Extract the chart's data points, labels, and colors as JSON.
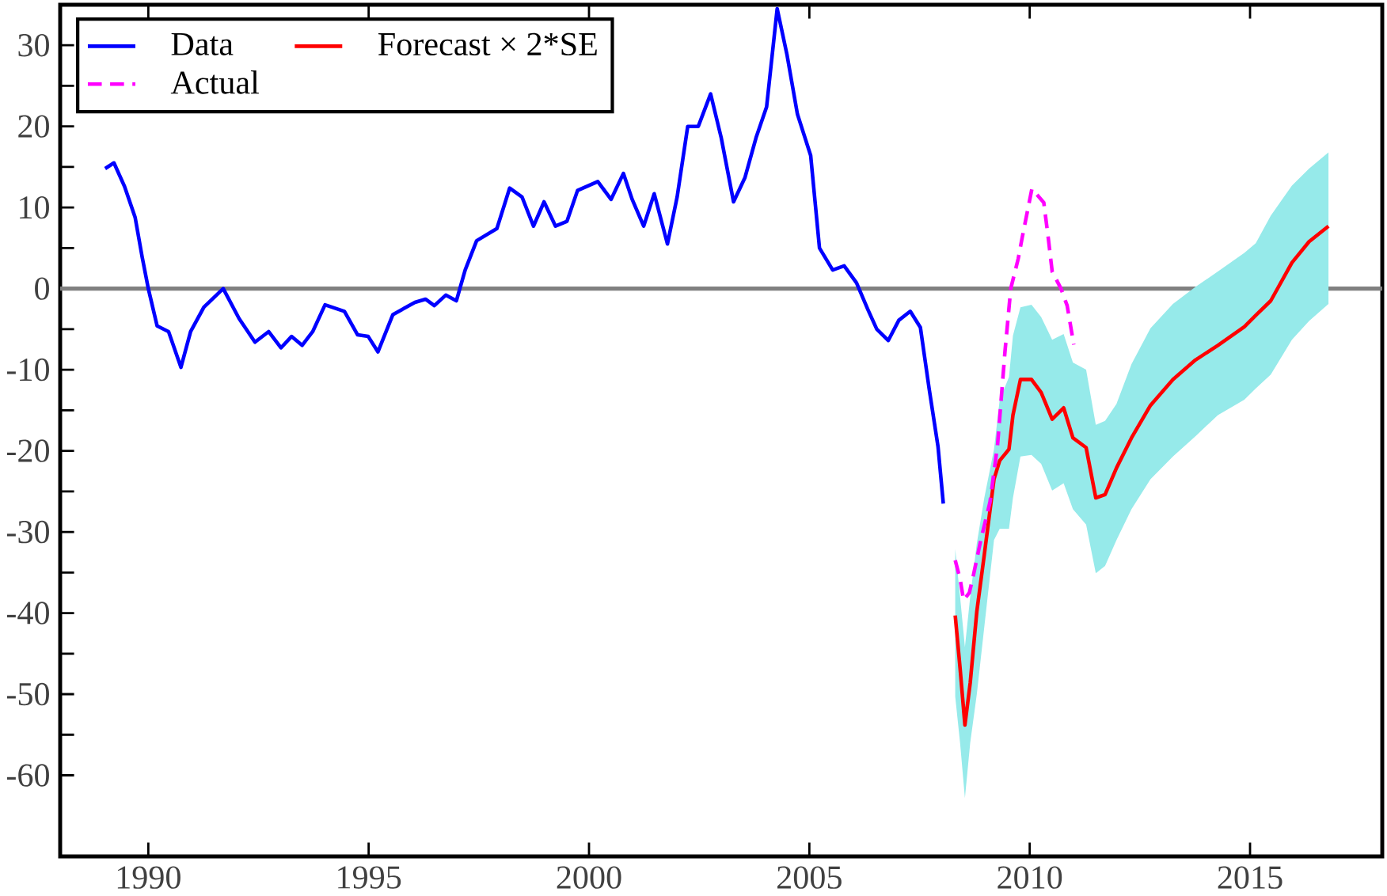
{
  "chart_data": {
    "type": "line",
    "xlim": [
      1988,
      2018
    ],
    "xticks": [
      1990,
      1995,
      2000,
      2005,
      2010,
      2015
    ],
    "ylim": [
      -70,
      35
    ],
    "yticks": [
      -60,
      -50,
      -40,
      -30,
      -20,
      -10,
      0,
      10,
      20,
      30
    ],
    "grid": false,
    "legend": "top left",
    "marker": "none",
    "ref_lines": [
      {
        "axis": "y",
        "value": 0,
        "color": "#808080"
      }
    ],
    "series": [
      {
        "name": "Data",
        "color": "#0000ff",
        "line_style": "solid",
        "x": [
          1989.02,
          1989.22,
          1989.46,
          1989.7,
          1989.86,
          1990.0,
          1990.2,
          1990.46,
          1990.74,
          1990.96,
          1991.26,
          1991.7,
          1992.06,
          1992.42,
          1992.73,
          1993.01,
          1993.25,
          1993.49,
          1993.73,
          1994.01,
          1994.45,
          1994.75,
          1994.99,
          1995.21,
          1995.55,
          1996.05,
          1996.29,
          1996.49,
          1996.75,
          1996.99,
          1997.19,
          1997.45,
          1997.91,
          1998.2,
          1998.48,
          1998.74,
          1998.98,
          1999.24,
          1999.5,
          1999.74,
          2000.2,
          2000.5,
          2000.78,
          2000.98,
          2001.24,
          2001.48,
          2001.78,
          2002.0,
          2002.24,
          2002.48,
          2002.76,
          2003.0,
          2003.28,
          2003.54,
          2003.79,
          2004.03,
          2004.27,
          2004.49,
          2004.73,
          2005.03,
          2005.23,
          2005.53,
          2005.79,
          2006.07,
          2006.33,
          2006.53,
          2006.79,
          2007.03,
          2007.29,
          2007.52,
          2007.72,
          2007.92,
          2008.04
        ],
        "values": [
          14.8,
          15.5,
          12.6,
          8.8,
          3.9,
          0,
          -4.6,
          -5.3,
          -9.7,
          -5.3,
          -2.3,
          0,
          -3.7,
          -6.6,
          -5.3,
          -7.3,
          -5.9,
          -7.0,
          -5.3,
          -2.0,
          -2.8,
          -5.7,
          -5.9,
          -7.8,
          -3.2,
          -1.7,
          -1.3,
          -2.1,
          -0.8,
          -1.5,
          2.3,
          5.9,
          7.4,
          12.4,
          11.3,
          7.7,
          10.7,
          7.7,
          8.3,
          12.1,
          13.2,
          11.0,
          14.2,
          11.0,
          7.7,
          11.7,
          5.5,
          11.3,
          20.0,
          20.0,
          24.0,
          18.6,
          10.7,
          13.7,
          18.6,
          22.4,
          34.5,
          28.9,
          21.5,
          16.4,
          5.0,
          2.3,
          2.8,
          0.7,
          -2.6,
          -5.0,
          -6.4,
          -3.9,
          -2.8,
          -4.8,
          -12.4,
          -19.5,
          -26.5
        ]
      },
      {
        "name": "Forecast × 2*SE",
        "color": "#ff0000",
        "line_style": "solid",
        "x": [
          2008.31,
          2008.42,
          2008.53,
          2008.65,
          2008.8,
          2008.97,
          2009.19,
          2009.32,
          2009.53,
          2009.62,
          2009.79,
          2010.04,
          2010.26,
          2010.51,
          2010.77,
          2010.98,
          2011.28,
          2011.5,
          2011.71,
          2011.97,
          2012.31,
          2012.74,
          2013.25,
          2013.76,
          2014.27,
          2014.87,
          2015.13,
          2015.47,
          2015.95,
          2016.34,
          2016.78
        ],
        "values": [
          -40.3,
          -46.8,
          -53.8,
          -48.6,
          -39.8,
          -32.8,
          -23.5,
          -21.2,
          -19.8,
          -15.6,
          -11.2,
          -11.2,
          -12.8,
          -16.1,
          -14.7,
          -18.4,
          -19.6,
          -25.8,
          -25.4,
          -22.1,
          -18.4,
          -14.4,
          -11.2,
          -8.8,
          -7.0,
          -4.7,
          -3.3,
          -1.5,
          3.2,
          5.8,
          7.7
        ],
        "upper": [
          -32.1,
          -38,
          -44.2,
          -38,
          -31.4,
          -25.8,
          -19.8,
          -13.7,
          -10.9,
          -5.8,
          -2.3,
          -2.0,
          -3.5,
          -6.3,
          -5.6,
          -9.1,
          -10.0,
          -16.8,
          -16.3,
          -14.2,
          -9.3,
          -4.9,
          -1.9,
          0.2,
          2.1,
          4.4,
          5.6,
          9.0,
          12.7,
          14.8,
          16.8
        ],
        "lower": [
          -50.3,
          -56,
          -62.8,
          -56,
          -50.0,
          -41.7,
          -31.0,
          -29.6,
          -29.6,
          -25.8,
          -20.7,
          -20.5,
          -21.6,
          -24.9,
          -24.0,
          -27.2,
          -29.1,
          -35.1,
          -34.2,
          -31.0,
          -27.2,
          -23.5,
          -20.7,
          -18.2,
          -15.6,
          -13.7,
          -12.3,
          -10.6,
          -6.3,
          -4.0,
          -1.9
        ]
      },
      {
        "name": "Actual",
        "color": "#ff00ff",
        "line_style": "dashed",
        "x": [
          2008.31,
          2008.42,
          2008.5,
          2008.63,
          2008.72,
          2008.89,
          2009.1,
          2009.27,
          2009.44,
          2009.57,
          2009.74,
          2009.83,
          2010.05,
          2010.32,
          2010.42,
          2010.51,
          2010.71,
          2010.85,
          2011.0
        ],
        "values": [
          -33.5,
          -35.8,
          -38.4,
          -37.5,
          -35.4,
          -31.0,
          -26.3,
          -19.3,
          -7.7,
          0,
          3.7,
          6.3,
          12.3,
          10.6,
          6.3,
          2.1,
          0,
          -2.1,
          -6.9
        ]
      }
    ]
  }
}
